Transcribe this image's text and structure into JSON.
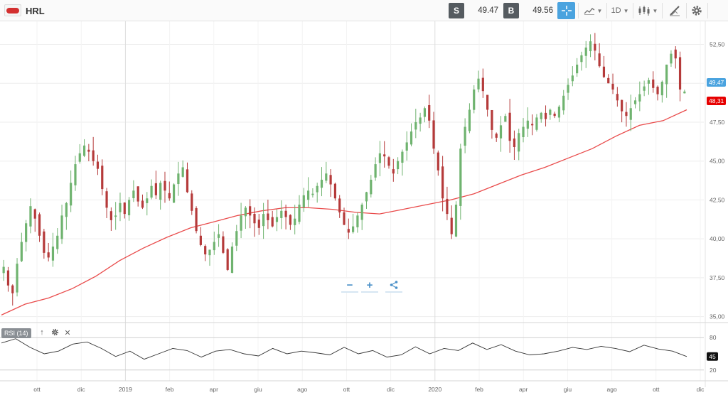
{
  "toolbar": {
    "symbol": "HRL",
    "sell_label": "S",
    "sell_price": "49.47",
    "buy_label": "B",
    "buy_price": "49.56",
    "interval": "1D"
  },
  "icons": {
    "crosshair": "crosshair-icon",
    "chart_type": "line-chart-icon",
    "candles": "candlestick-icon",
    "drawing": "pencil-ruler-icon",
    "settings": "gear-icon",
    "zoom_out": "minus-icon",
    "zoom_in": "plus-icon",
    "share": "share-icon"
  },
  "colors": {
    "up_candle": "#6fb36f",
    "down_candle": "#b53a3a",
    "moving_average": "#e94b4b",
    "rsi_line": "#333333",
    "current_price_tag": "#4aa3df",
    "ma_price_tag": "#e60000"
  },
  "price_axis": {
    "ticks": [
      "52,50",
      "50,00",
      "47,50",
      "45,00",
      "42,50",
      "40,00",
      "37,50",
      "35,00"
    ],
    "current_price_label": "49,47",
    "ma_price_label": "48,31"
  },
  "time_axis": {
    "ticks": [
      "ott",
      "dic",
      "2019",
      "feb",
      "apr",
      "giu",
      "ago",
      "ott",
      "dic",
      "2020",
      "feb",
      "apr",
      "giu",
      "ago",
      "ott",
      "dic"
    ]
  },
  "rsi": {
    "label": "RSI (14)",
    "ticks": [
      "80",
      "20"
    ],
    "current_value": "45"
  },
  "chart_data": {
    "type": "candlestick",
    "y_axis_ticks": [
      52.5,
      50.0,
      47.5,
      45.0,
      42.5,
      40.0,
      37.5,
      35.0
    ],
    "ylim": [
      34.8,
      53.3
    ],
    "x_tick_labels": [
      "ott",
      "dic",
      "2019",
      "feb",
      "apr",
      "giu",
      "ago",
      "ott",
      "dic",
      "2020",
      "feb",
      "apr",
      "giu",
      "ago",
      "ott",
      "dic"
    ],
    "close_series": [
      38.2,
      37.0,
      36.5,
      38.4,
      39.8,
      41.0,
      42.1,
      41.3,
      40.2,
      39.1,
      38.8,
      39.5,
      40.2,
      41.5,
      42.3,
      43.6,
      44.8,
      45.5,
      46.0,
      45.6,
      45.0,
      44.5,
      43.2,
      42.0,
      41.2,
      41.5,
      42.3,
      41.6,
      42.5,
      43.1,
      42.4,
      42.0,
      42.6,
      43.4,
      42.8,
      43.6,
      43.1,
      42.6,
      43.5,
      44.2,
      44.6,
      43.0,
      41.8,
      40.5,
      39.6,
      39.0,
      39.3,
      39.8,
      40.3,
      39.1,
      38.0,
      39.5,
      40.5,
      41.5,
      42.0,
      41.5,
      41.0,
      40.7,
      41.6,
      41.2,
      40.8,
      41.4,
      41.8,
      41.4,
      40.9,
      41.3,
      42.2,
      42.8,
      43.1,
      42.9,
      43.4,
      43.8,
      44.2,
      43.5,
      42.6,
      41.7,
      40.9,
      40.4,
      40.8,
      41.5,
      42.2,
      43.0,
      43.8,
      44.8,
      45.5,
      45.3,
      44.7,
      44.2,
      45.0,
      45.6,
      46.2,
      46.9,
      47.5,
      47.8,
      48.4,
      47.6,
      45.8,
      44.4,
      42.6,
      41.6,
      40.3,
      42.2,
      45.8,
      47.2,
      48.3,
      49.6,
      50.3,
      49.5,
      48.3,
      47.0,
      46.5,
      47.3,
      47.9,
      46.3,
      45.9,
      46.8,
      47.2,
      47.6,
      47.3,
      47.8,
      48.1,
      47.7,
      48.3,
      47.9,
      48.5,
      49.2,
      49.9,
      50.5,
      51.2,
      51.8,
      52.3,
      52.7,
      52.1,
      51.1,
      50.4,
      50.0,
      49.6,
      48.9,
      48.2,
      47.9,
      48.4,
      48.9,
      49.3,
      49.8,
      50.2,
      49.7,
      49.3,
      50.1,
      51.2,
      51.9,
      51.6,
      49.6,
      49.47
    ],
    "moving_average": [
      35.1,
      35.8,
      36.2,
      36.8,
      37.6,
      38.6,
      39.4,
      40.1,
      40.7,
      41.1,
      41.5,
      41.8,
      42.0,
      42.0,
      41.9,
      41.7,
      41.6,
      41.9,
      42.2,
      42.5,
      42.9,
      43.5,
      44.1,
      44.6,
      45.2,
      45.8,
      46.6,
      47.3,
      47.6,
      48.3
    ],
    "rsi_values": [
      70,
      78,
      62,
      50,
      55,
      68,
      72,
      60,
      45,
      55,
      40,
      50,
      60,
      56,
      44,
      55,
      58,
      50,
      46,
      60,
      50,
      55,
      52,
      48,
      62,
      50,
      56,
      44,
      48,
      63,
      50,
      60,
      56,
      70,
      58,
      67,
      55,
      48,
      50,
      55,
      62,
      58,
      64,
      60,
      54,
      66,
      59,
      55,
      45
    ],
    "rsi_levels": [
      80,
      20
    ]
  }
}
